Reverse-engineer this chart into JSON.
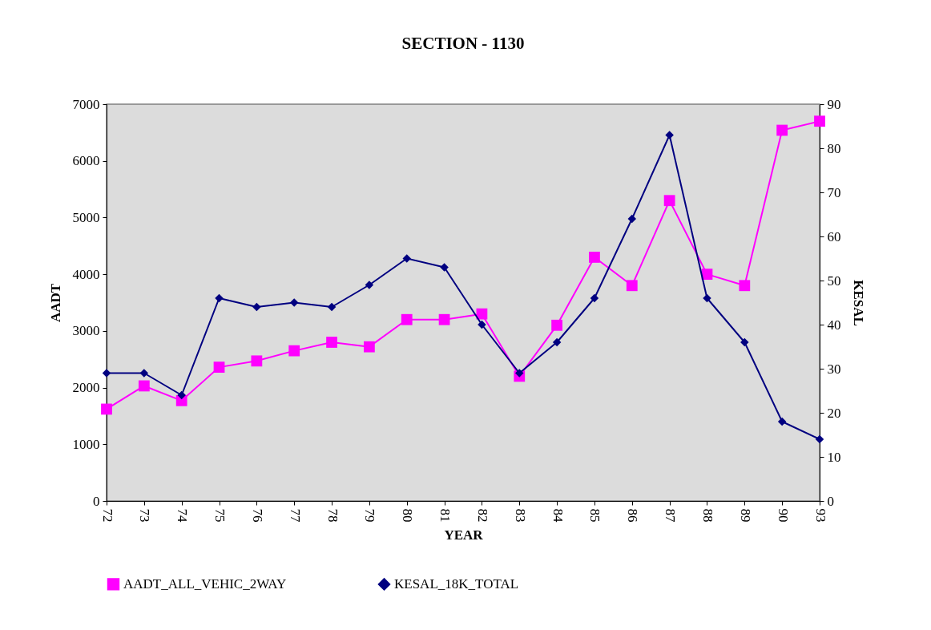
{
  "chart_data": {
    "type": "line",
    "title": "SECTION - 1130",
    "xlabel": "YEAR",
    "ylabel": "AADT",
    "y2label": "KESAL",
    "categories": [
      "72",
      "73",
      "74",
      "75",
      "76",
      "77",
      "78",
      "79",
      "80",
      "81",
      "82",
      "83",
      "84",
      "85",
      "86",
      "87",
      "88",
      "89",
      "90",
      "93"
    ],
    "series": [
      {
        "name": "AADT_ALL_VEHIC_2WAY",
        "color": "#ff00ff",
        "marker": "square",
        "values": [
          1620,
          2030,
          1770,
          2360,
          2470,
          2650,
          2800,
          2720,
          3200,
          3200,
          3300,
          2200,
          3100,
          4300,
          3800,
          5300,
          4000,
          3800,
          6540,
          6700
        ]
      },
      {
        "name": "KESAL_18K_TOTAL",
        "color": "#000080",
        "marker": "diamond",
        "axis": "y2",
        "values": [
          29,
          29,
          24,
          46,
          44,
          45,
          44,
          49,
          55,
          53,
          40,
          29,
          36,
          46,
          64,
          83,
          46,
          36,
          18,
          14
        ]
      }
    ],
    "ylim": [
      0,
      7000
    ],
    "yticks": [
      0,
      1000,
      2000,
      3000,
      4000,
      5000,
      6000,
      7000
    ],
    "y2lim": [
      0,
      90
    ],
    "y2ticks": [
      0,
      10,
      20,
      30,
      40,
      50,
      60,
      70,
      80,
      90
    ],
    "grid": false,
    "legend": "bottom",
    "line_style": "solid"
  }
}
